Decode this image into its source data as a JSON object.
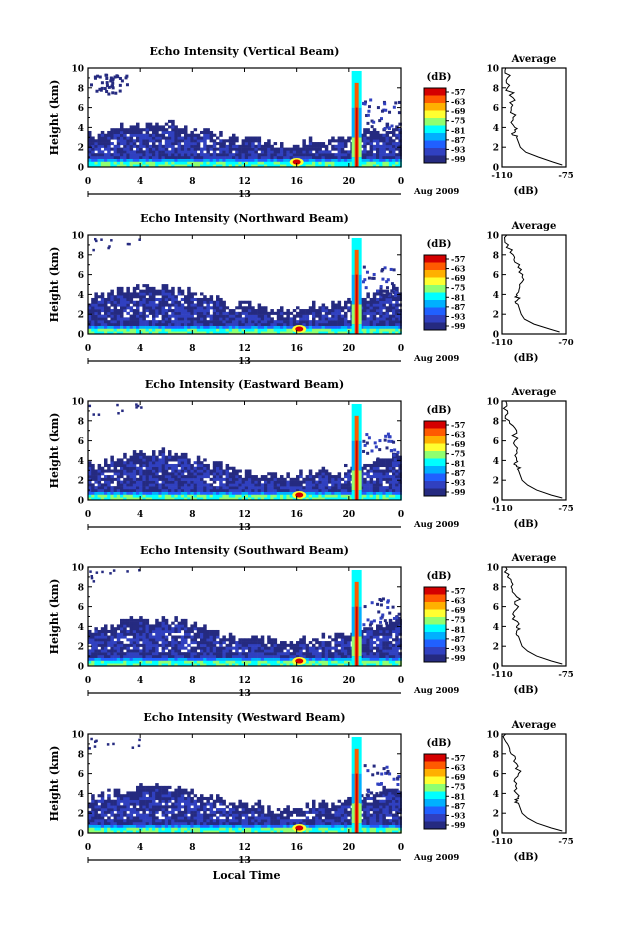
{
  "figure": {
    "xlabel": "Local Time",
    "x_ticks": [
      "0",
      "4",
      "8",
      "12",
      "16",
      "20",
      "0"
    ],
    "date_label": "Aug 2009",
    "day_marker": "13",
    "y_ticks": [
      "0",
      "2",
      "4",
      "6",
      "8",
      "10"
    ],
    "ylabel": "Height (km)",
    "colorbar_unit": "(dB)",
    "colorbar_ticks": [
      "-57",
      "-63",
      "-69",
      "-75",
      "-81",
      "-87",
      "-93",
      "-99"
    ],
    "colorbar_colors": [
      "#d40000",
      "#ff5a00",
      "#ffb000",
      "#ffff30",
      "#90ff70",
      "#00ffff",
      "#00b0ff",
      "#2060ff",
      "#3040c0",
      "#252a80"
    ],
    "profile_title": "Average",
    "profile_xticks": [
      [
        "-110",
        "-75"
      ],
      [
        "-110",
        "-70"
      ],
      [
        "-110",
        "-75"
      ],
      [
        "-110",
        "-75"
      ],
      [
        "-110",
        "-75"
      ]
    ],
    "profile_xlabel": "(dB)"
  },
  "chart_data": [
    {
      "type": "heatmap",
      "title": "Echo Intensity (Vertical Beam)",
      "xlabel": "",
      "ylabel": "Height (km)",
      "xlim": [
        0,
        24
      ],
      "ylim": [
        0,
        10
      ],
      "colorbar": {
        "unit": "dB",
        "range": [
          -99,
          -57
        ]
      },
      "features": {
        "boundary_layer_top_km": 3.5,
        "rain_column_hour": 20.6,
        "rain_top_km": 9.5,
        "warm_spot_hour": 16,
        "upper_cloud_hours": [
          0,
          3
        ],
        "upper_cloud_km": [
          7.5,
          9.5
        ]
      },
      "profile": {
        "title": "Average",
        "xlabel": "(dB)",
        "xlim": [
          -110,
          -75
        ],
        "height": [
          0.2,
          0.5,
          1,
          1.5,
          2,
          2.5,
          3,
          3.5,
          4,
          5,
          6,
          7,
          8,
          9,
          10
        ],
        "mean_db": [
          -77,
          -82,
          -90,
          -97,
          -100,
          -101,
          -102,
          -103,
          -103,
          -104,
          -105,
          -104,
          -107,
          -107,
          -108
        ]
      }
    },
    {
      "type": "heatmap",
      "title": "Echo Intensity (Northward Beam)",
      "xlabel": "",
      "ylabel": "Height (km)",
      "xlim": [
        0,
        24
      ],
      "ylim": [
        0,
        10
      ],
      "colorbar": {
        "unit": "dB",
        "range": [
          -99,
          -57
        ]
      },
      "features": {
        "boundary_layer_top_km": 3.8,
        "rain_column_hour": 20.6,
        "rain_top_km": 9.5,
        "warm_spot_hour": 16.2
      },
      "profile": {
        "title": "Average",
        "xlabel": "(dB)",
        "xlim": [
          -110,
          -70
        ],
        "height": [
          0.2,
          0.5,
          1,
          1.5,
          2,
          2.5,
          3,
          3.5,
          4,
          5,
          6,
          7,
          8,
          9,
          10
        ],
        "mean_db": [
          -74,
          -80,
          -90,
          -96,
          -98,
          -99,
          -100,
          -100,
          -101,
          -99,
          -97,
          -99,
          -103,
          -106,
          -107
        ]
      }
    },
    {
      "type": "heatmap",
      "title": "Echo Intensity (Eastward Beam)",
      "xlabel": "",
      "ylabel": "Height (km)",
      "xlim": [
        0,
        24
      ],
      "ylim": [
        0,
        10
      ],
      "colorbar": {
        "unit": "dB",
        "range": [
          -99,
          -57
        ]
      },
      "features": {
        "boundary_layer_top_km": 3.8,
        "rain_column_hour": 20.6,
        "rain_top_km": 9.5,
        "warm_spot_hour": 16.2
      },
      "profile": {
        "title": "Average",
        "xlabel": "(dB)",
        "xlim": [
          -110,
          -75
        ],
        "height": [
          0.2,
          0.5,
          1,
          1.5,
          2,
          2.5,
          3,
          3.5,
          4,
          5,
          6,
          7,
          8,
          9,
          10
        ],
        "mean_db": [
          -77,
          -83,
          -91,
          -96,
          -99,
          -100,
          -101,
          -102,
          -102,
          -102,
          -103,
          -102,
          -106,
          -107,
          -108
        ]
      }
    },
    {
      "type": "heatmap",
      "title": "Echo Intensity (Southward Beam)",
      "xlabel": "",
      "ylabel": "Height (km)",
      "xlim": [
        0,
        24
      ],
      "ylim": [
        0,
        10
      ],
      "colorbar": {
        "unit": "dB",
        "range": [
          -99,
          -57
        ]
      },
      "features": {
        "boundary_layer_top_km": 3.8,
        "rain_column_hour": 20.6,
        "rain_top_km": 9.5,
        "warm_spot_hour": 16.2
      },
      "profile": {
        "title": "Average",
        "xlabel": "(dB)",
        "xlim": [
          -110,
          -75
        ],
        "height": [
          0.2,
          0.5,
          1,
          1.5,
          2,
          2.5,
          3,
          3.5,
          4,
          5,
          6,
          7,
          8,
          9,
          10
        ],
        "mean_db": [
          -77,
          -83,
          -91,
          -96,
          -99,
          -100,
          -101,
          -102,
          -102,
          -103,
          -101,
          -102,
          -105,
          -107,
          -108
        ]
      }
    },
    {
      "type": "heatmap",
      "title": "Echo Intensity (Westward Beam)",
      "xlabel": "Local Time",
      "ylabel": "Height (km)",
      "xlim": [
        0,
        24
      ],
      "ylim": [
        0,
        10
      ],
      "colorbar": {
        "unit": "dB",
        "range": [
          -99,
          -57
        ]
      },
      "features": {
        "boundary_layer_top_km": 3.8,
        "rain_column_hour": 20.6,
        "rain_top_km": 9.5,
        "warm_spot_hour": 16.2
      },
      "profile": {
        "title": "Average",
        "xlabel": "(dB)",
        "xlim": [
          -110,
          -75
        ],
        "height": [
          0.2,
          0.5,
          1,
          1.5,
          2,
          2.5,
          3,
          3.5,
          4,
          5,
          6,
          7,
          8,
          9,
          10
        ],
        "mean_db": [
          -77,
          -83,
          -91,
          -96,
          -99,
          -100,
          -101,
          -101,
          -102,
          -102,
          -101,
          -102,
          -105,
          -107,
          -108
        ]
      }
    }
  ]
}
